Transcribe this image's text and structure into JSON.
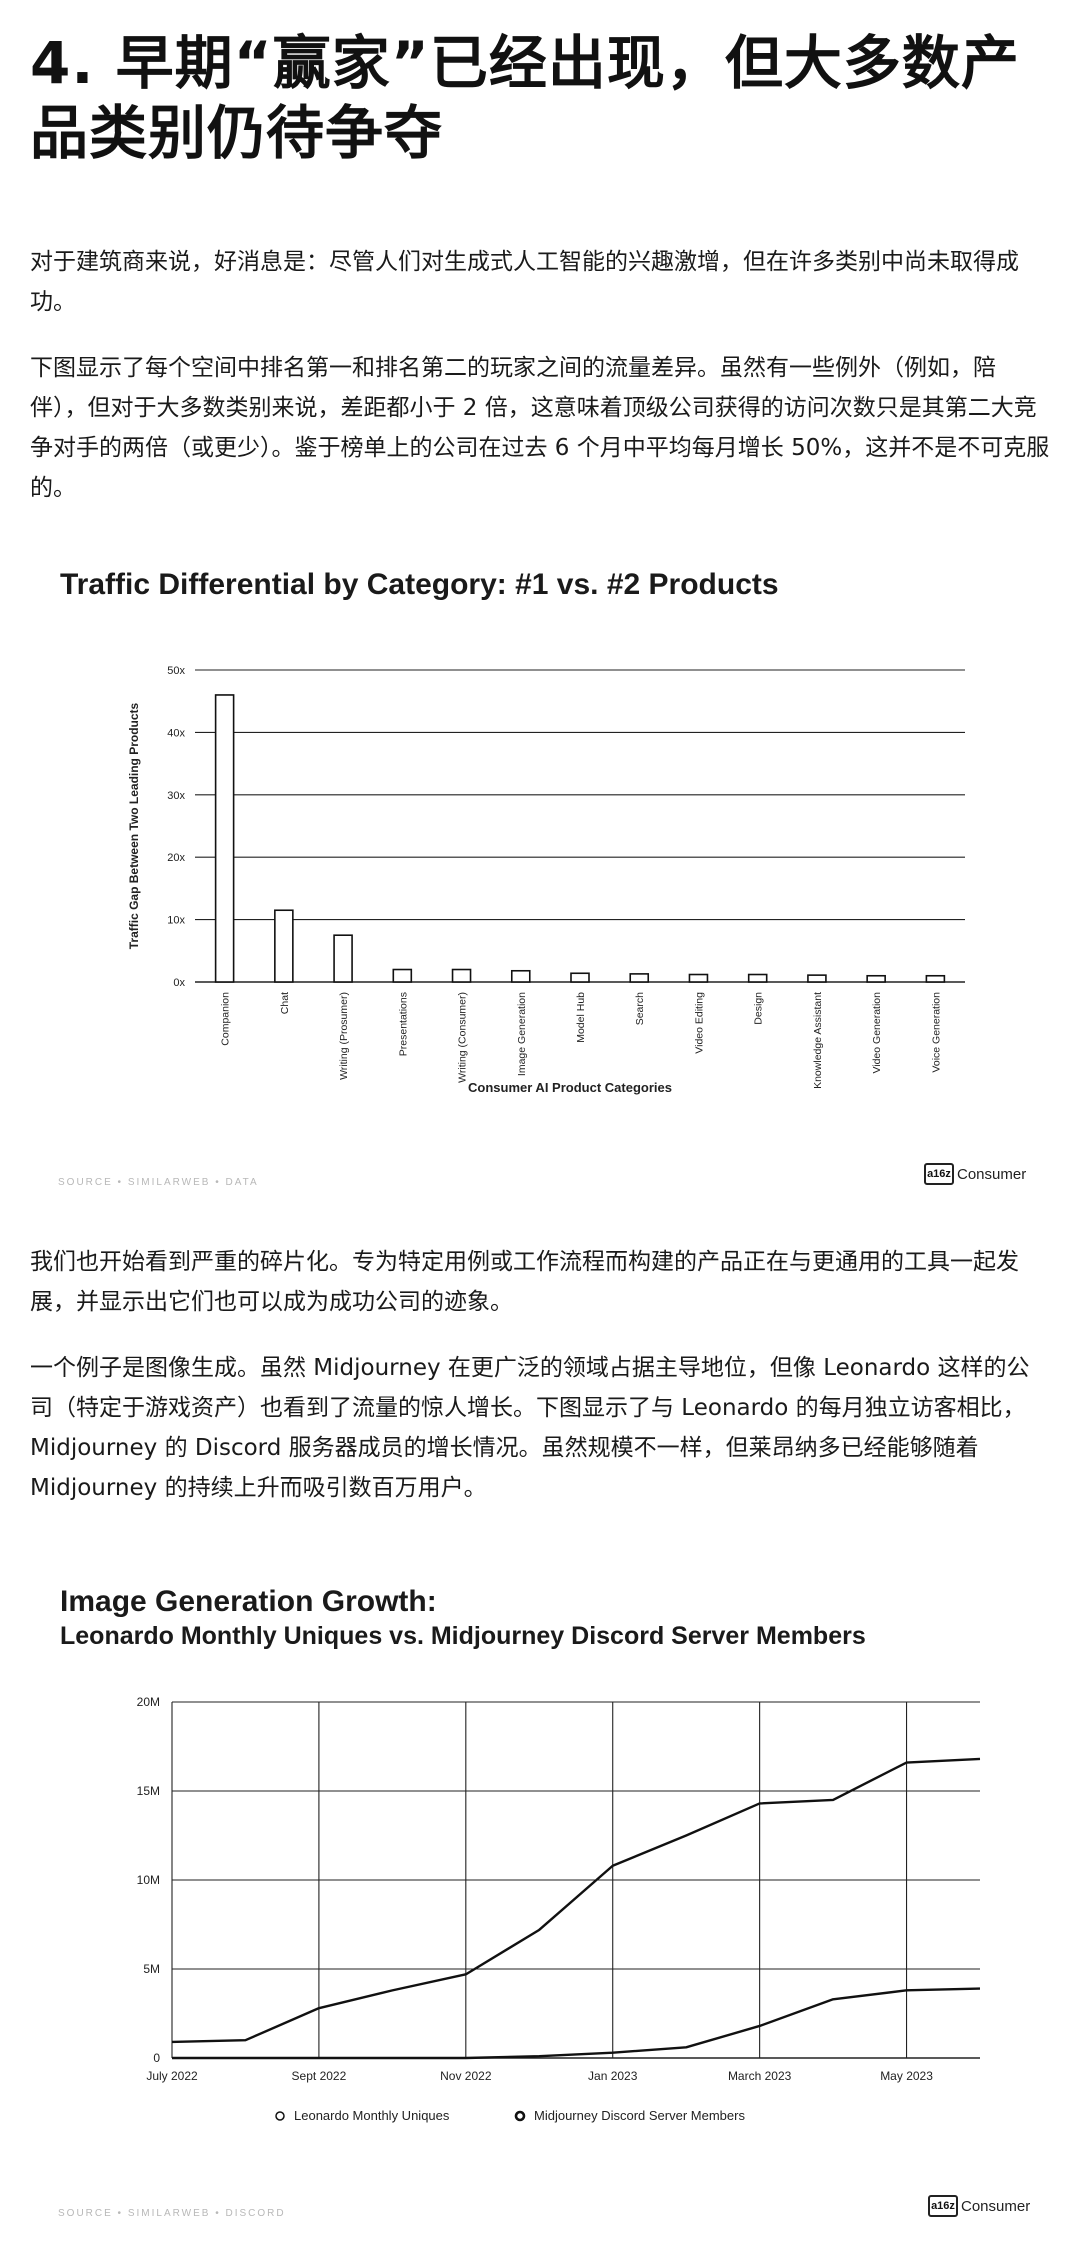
{
  "article": {
    "title": "4. 早期“赢家”已经出现，但大多数产品类别仍待争夺",
    "paragraphs": [
      "对于建筑商来说，好消息是：尽管人们对生成式人工智能的兴趣激增，但在许多类别中尚未取得成功。",
      "下图显示了每个空间中排名第一和排名第二的玩家之间的流量差异。虽然有一些例外（例如，陪伴），但对于大多数类别来说，差距都小于 2 倍，这意味着顶级公司获得的访问次数只是其第二大竞争对手的两倍（或更少）。鉴于榜单上的公司在过去 6 个月中平均每月增长 50%，这并不是不可克服的。",
      "我们也开始看到严重的碎片化。专为特定用例或工作流程而构建的产品正在与更通用的工具一起发展，并显示出它们也可以成为成功公司的迹象。",
      "一个例子是图像生成。虽然 Midjourney 在更广泛的领域占据主导地位，但像 Leonardo 这样的公司（特定于游戏资产）也看到了流量的惊人增长。下图显示了与 Leonardo 的每月独立访客相比，Midjourney 的 Discord 服务器成员的增长情况。虽然规模不一样，但莱昂纳多已经能够随着 Midjourney 的持续上升而吸引数百万用户。"
    ]
  },
  "logo": {
    "mark": "a16z",
    "text": "Consumer"
  },
  "chart_data": [
    {
      "type": "bar",
      "title": "Traffic Differential by Category: #1 vs. #2 Products",
      "xlabel": "Consumer AI Product Categories",
      "ylabel": "Traffic Gap Between Two Leading Products",
      "ylim": [
        0,
        50
      ],
      "yticks": [
        "0x",
        "10x",
        "20x",
        "30x",
        "40x",
        "50x"
      ],
      "categories": [
        "Companion",
        "Chat",
        "Writing (Prosumer)",
        "Presentations",
        "Writing (Consumer)",
        "Image Generation",
        "Model Hub",
        "Search",
        "Video Editing",
        "Design",
        "Knowledge Assistant",
        "Video Generation",
        "Voice Generation"
      ],
      "values": [
        46,
        11.5,
        7.5,
        2,
        2,
        1.8,
        1.4,
        1.3,
        1.2,
        1.2,
        1.1,
        1,
        1
      ],
      "grid": true,
      "bar_color": "#ffffff"
    },
    {
      "type": "line",
      "title": "Image Generation Growth:",
      "subtitle": "Leonardo Monthly Uniques vs. Midjourney Discord Server Members",
      "ylim": [
        0,
        20
      ],
      "yticks": [
        "0",
        "5M",
        "10M",
        "15M",
        "20M"
      ],
      "xticks": [
        "July 2022",
        "Sept 2022",
        "Nov 2022",
        "Jan 2023",
        "March 2023",
        "May 2023"
      ],
      "x": [
        "2022-07",
        "2022-08",
        "2022-09",
        "2022-10",
        "2022-11",
        "2022-12",
        "2023-01",
        "2023-02",
        "2023-03",
        "2023-04",
        "2023-05",
        "2023-06"
      ],
      "series": [
        {
          "name": "Leonardo Monthly Uniques",
          "values": [
            0,
            0,
            0,
            0,
            0,
            0.1,
            0.3,
            0.6,
            1.8,
            3.3,
            3.8,
            3.9
          ]
        },
        {
          "name": "Midjourney Discord Server Members",
          "values": [
            0.9,
            1.0,
            2.8,
            3.8,
            4.7,
            7.2,
            10.8,
            12.5,
            14.3,
            14.5,
            16.6,
            16.8
          ]
        }
      ],
      "legend_position": "bottom",
      "grid": true
    }
  ]
}
